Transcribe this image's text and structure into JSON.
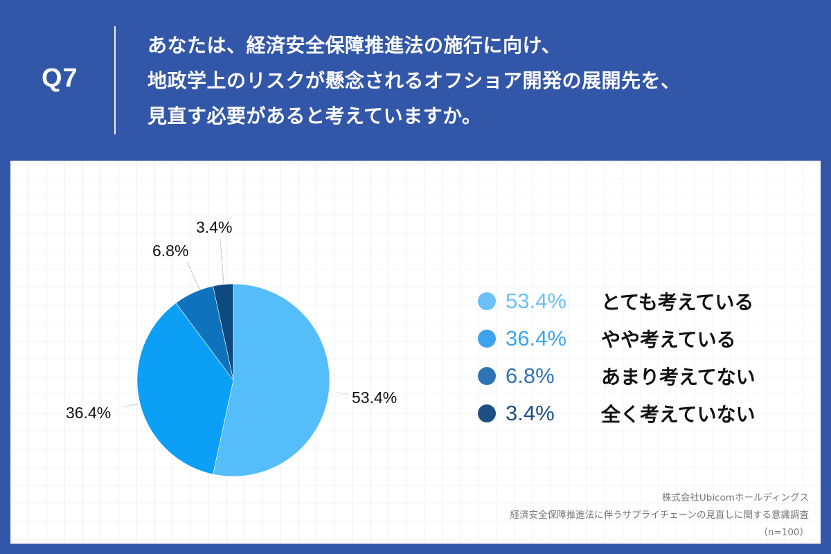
{
  "header": {
    "question_number": "Q7",
    "question_lines": [
      "あなたは、経済安全保障推進法の施行に向け、",
      "地政学上のリスクが懸念されるオフショア開発の展開先を、",
      "見直す必要があると考えていますか。"
    ]
  },
  "colors": {
    "header_bg": "#3357a8",
    "panel_bg": "#ffffff"
  },
  "chart_data": {
    "type": "pie",
    "title": "あなたは、経済安全保障推進法の施行に向け、地政学上のリスクが懸念されるオフショア開発の展開先を、見直す必要があると考えていますか。",
    "categories": [
      "とても考えている",
      "やや考えている",
      "あまり考えてない",
      "全く考えていない"
    ],
    "values": [
      53.4,
      36.4,
      6.8,
      3.4
    ],
    "value_labels": [
      "53.4%",
      "36.4%",
      "6.8%",
      "3.4%"
    ],
    "colors": [
      "#56bdfb",
      "#0ba0f6",
      "#0f72bc",
      "#0d4a80"
    ],
    "legend_text_colors": [
      "#6cc0f7",
      "#3ea3ef",
      "#2e74b5",
      "#1e4f82"
    ],
    "start_angle": "12 o'clock, clockwise",
    "legend_position": "right",
    "sample_size": "n=100"
  },
  "legend": [
    {
      "pct": "53.4%",
      "label": "とても考えている"
    },
    {
      "pct": "36.4%",
      "label": "やや考えている"
    },
    {
      "pct": "6.8%",
      "label": "あまり考えてない"
    },
    {
      "pct": "3.4%",
      "label": "全く考えていない"
    }
  ],
  "slice_labels": [
    "53.4%",
    "36.4%",
    "6.8%",
    "3.4%"
  ],
  "source": {
    "company": "株式会社Ubicomホールディングス",
    "survey": "経済安全保障推進法に伴うサプライチェーンの見直しに関する意識調査",
    "sample": "（n=100）"
  }
}
